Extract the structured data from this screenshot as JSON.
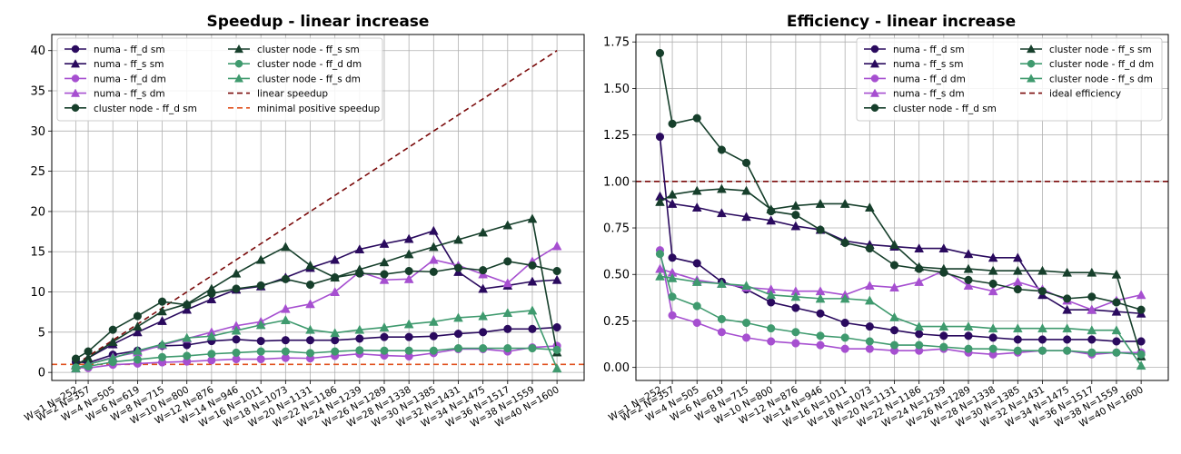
{
  "chart_data": [
    {
      "type": "line",
      "title": "Speedup - linear increase",
      "xlabel": "",
      "ylabel": "",
      "categories": [
        "W=1 N=252",
        "W=2 N=357",
        "W=4 N=505",
        "W=6 N=619",
        "W=8 N=715",
        "W=10 N=800",
        "W=12 N=876",
        "W=14 N=946",
        "W=16 N=1011",
        "W=18 N=1073",
        "W=20 N=1131",
        "W=22 N=1186",
        "W=24 N=1239",
        "W=26 N=1289",
        "W=28 N=1338",
        "W=30 N=1385",
        "W=32 N=1431",
        "W=34 N=1475",
        "W=36 N=1517",
        "W=38 N=1559",
        "W=40 N=1600"
      ],
      "x": [
        1,
        2,
        4,
        6,
        8,
        10,
        12,
        14,
        16,
        18,
        20,
        22,
        24,
        26,
        28,
        30,
        32,
        34,
        36,
        38,
        40
      ],
      "xlim": [
        -0.95,
        42.2
      ],
      "ylim": [
        -1.0,
        42.0
      ],
      "yticks": [
        0,
        5,
        10,
        15,
        20,
        25,
        30,
        35,
        40
      ],
      "grid": true,
      "legend_position": "top-left",
      "legend_columns": 2,
      "series": [
        {
          "name": "numa - ff_d sm",
          "color": "#2a0a5e",
          "marker": "circle",
          "values": [
            1.3,
            1.2,
            2.2,
            2.7,
            3.3,
            3.4,
            3.9,
            4.1,
            3.9,
            4.0,
            4.0,
            4.0,
            4.2,
            4.4,
            4.4,
            4.5,
            4.8,
            5.0,
            5.4,
            5.4,
            5.6
          ]
        },
        {
          "name": "numa - ff_s sm",
          "color": "#2a0a5e",
          "marker": "triangle",
          "values": [
            0.9,
            1.8,
            3.5,
            5.0,
            6.4,
            7.8,
            9.1,
            10.3,
            10.7,
            11.8,
            13.0,
            14.0,
            15.3,
            16.0,
            16.6,
            17.6,
            12.5,
            10.4,
            10.8,
            11.3,
            11.5
          ]
        },
        {
          "name": "numa - ff_d dm",
          "color": "#a64fd0",
          "marker": "circle",
          "values": [
            0.6,
            0.55,
            0.95,
            1.1,
            1.25,
            1.35,
            1.5,
            1.65,
            1.65,
            1.8,
            1.75,
            2.05,
            2.3,
            2.1,
            2.0,
            2.4,
            2.9,
            2.9,
            2.6,
            3.1,
            3.3
          ]
        },
        {
          "name": "numa - ff_s dm",
          "color": "#a64fd0",
          "marker": "triangle",
          "values": [
            0.5,
            1.0,
            1.9,
            2.5,
            3.4,
            4.2,
            5.0,
            5.8,
            6.3,
            7.9,
            8.5,
            10.0,
            12.5,
            11.5,
            11.6,
            14.0,
            13.3,
            12.2,
            11.1,
            13.8,
            15.7
          ]
        },
        {
          "name": "cluster node - ff_d sm",
          "color": "#163f2b",
          "marker": "circle",
          "values": [
            1.7,
            2.6,
            5.3,
            7.0,
            8.8,
            8.4,
            9.8,
            10.4,
            10.8,
            11.6,
            10.9,
            11.8,
            12.3,
            12.2,
            12.6,
            12.5,
            13.0,
            12.7,
            13.8,
            13.3,
            12.6
          ]
        },
        {
          "name": "cluster node - ff_s sm",
          "color": "#163f2b",
          "marker": "triangle",
          "values": [
            0.9,
            1.8,
            3.8,
            5.7,
            7.6,
            8.5,
            10.4,
            12.3,
            14.0,
            15.6,
            13.3,
            11.8,
            12.8,
            13.7,
            14.7,
            15.6,
            16.5,
            17.4,
            18.3,
            19.1,
            2.5
          ]
        },
        {
          "name": "cluster node - ff_d dm",
          "color": "#3f9a6e",
          "marker": "circle",
          "values": [
            0.6,
            0.75,
            1.3,
            1.6,
            1.9,
            2.05,
            2.3,
            2.45,
            2.6,
            2.6,
            2.4,
            2.6,
            2.75,
            2.7,
            2.7,
            2.7,
            3.0,
            3.0,
            3.0,
            3.0,
            2.8
          ]
        },
        {
          "name": "cluster node - ff_s dm",
          "color": "#3f9a6e",
          "marker": "triangle",
          "values": [
            0.5,
            1.0,
            1.8,
            2.7,
            3.5,
            4.3,
            4.5,
            5.2,
            5.9,
            6.5,
            5.3,
            4.9,
            5.3,
            5.6,
            6.0,
            6.3,
            6.8,
            7.0,
            7.4,
            7.7,
            0.5
          ]
        }
      ],
      "reference_lines": [
        {
          "name": "linear speedup",
          "color": "#7a0a0a",
          "style": "dashed",
          "from": [
            1,
            1
          ],
          "to": [
            40,
            40
          ]
        },
        {
          "name": "minimal positive speedup",
          "color": "#e0501e",
          "style": "dashed",
          "y": 1
        }
      ]
    },
    {
      "type": "line",
      "title": "Efficiency - linear increase",
      "xlabel": "",
      "ylabel": "",
      "categories": [
        "W=1 N=252",
        "W=2 N=357",
        "W=4 N=505",
        "W=6 N=619",
        "W=8 N=715",
        "W=10 N=800",
        "W=12 N=876",
        "W=14 N=946",
        "W=16 N=1011",
        "W=18 N=1073",
        "W=20 N=1131",
        "W=22 N=1186",
        "W=24 N=1239",
        "W=26 N=1289",
        "W=28 N=1338",
        "W=30 N=1385",
        "W=32 N=1431",
        "W=34 N=1475",
        "W=36 N=1517",
        "W=38 N=1559",
        "W=40 N=1600"
      ],
      "x": [
        1,
        2,
        4,
        6,
        8,
        10,
        12,
        14,
        16,
        18,
        20,
        22,
        24,
        26,
        28,
        30,
        32,
        34,
        36,
        38,
        40
      ],
      "xlim": [
        -0.95,
        42.2
      ],
      "ylim": [
        -0.07,
        1.79
      ],
      "yticks": [
        0.0,
        0.25,
        0.5,
        0.75,
        1.0,
        1.25,
        1.5,
        1.75
      ],
      "ytick_labels": [
        "0.00",
        "0.25",
        "0.50",
        "0.75",
        "1.00",
        "1.25",
        "1.50",
        "1.75"
      ],
      "grid": true,
      "legend_position": "top-right",
      "legend_columns": 2,
      "series": [
        {
          "name": "numa - ff_d sm",
          "color": "#2a0a5e",
          "marker": "circle",
          "values": [
            1.24,
            0.59,
            0.56,
            0.46,
            0.42,
            0.35,
            0.32,
            0.29,
            0.24,
            0.22,
            0.2,
            0.18,
            0.17,
            0.17,
            0.16,
            0.15,
            0.15,
            0.15,
            0.15,
            0.14,
            0.14
          ]
        },
        {
          "name": "numa - ff_s sm",
          "color": "#2a0a5e",
          "marker": "triangle",
          "values": [
            0.92,
            0.88,
            0.86,
            0.83,
            0.81,
            0.79,
            0.76,
            0.74,
            0.68,
            0.66,
            0.65,
            0.64,
            0.64,
            0.61,
            0.59,
            0.59,
            0.39,
            0.31,
            0.31,
            0.3,
            0.29
          ]
        },
        {
          "name": "numa - ff_d dm",
          "color": "#a64fd0",
          "marker": "circle",
          "values": [
            0.63,
            0.28,
            0.24,
            0.19,
            0.16,
            0.14,
            0.13,
            0.12,
            0.1,
            0.1,
            0.09,
            0.09,
            0.1,
            0.08,
            0.07,
            0.08,
            0.09,
            0.09,
            0.07,
            0.08,
            0.08
          ]
        },
        {
          "name": "numa - ff_s dm",
          "color": "#a64fd0",
          "marker": "triangle",
          "values": [
            0.53,
            0.51,
            0.47,
            0.45,
            0.43,
            0.42,
            0.41,
            0.41,
            0.39,
            0.44,
            0.43,
            0.46,
            0.52,
            0.44,
            0.41,
            0.46,
            0.42,
            0.36,
            0.31,
            0.36,
            0.39
          ]
        },
        {
          "name": "cluster node - ff_d sm",
          "color": "#163f2b",
          "marker": "circle",
          "values": [
            1.69,
            1.31,
            1.34,
            1.17,
            1.1,
            0.84,
            0.82,
            0.74,
            0.67,
            0.64,
            0.55,
            0.53,
            0.51,
            0.47,
            0.45,
            0.42,
            0.41,
            0.37,
            0.38,
            0.35,
            0.31
          ]
        },
        {
          "name": "cluster node - ff_s sm",
          "color": "#163f2b",
          "marker": "triangle",
          "values": [
            0.89,
            0.93,
            0.95,
            0.96,
            0.95,
            0.85,
            0.87,
            0.88,
            0.88,
            0.86,
            0.66,
            0.54,
            0.53,
            0.53,
            0.52,
            0.52,
            0.52,
            0.51,
            0.51,
            0.5,
            0.06
          ]
        },
        {
          "name": "cluster node - ff_d dm",
          "color": "#3f9a6e",
          "marker": "circle",
          "values": [
            0.61,
            0.38,
            0.33,
            0.26,
            0.24,
            0.21,
            0.19,
            0.17,
            0.16,
            0.14,
            0.12,
            0.12,
            0.11,
            0.1,
            0.1,
            0.09,
            0.09,
            0.09,
            0.08,
            0.08,
            0.07
          ]
        },
        {
          "name": "cluster node - ff_s dm",
          "color": "#3f9a6e",
          "marker": "triangle",
          "values": [
            0.49,
            0.48,
            0.46,
            0.45,
            0.44,
            0.39,
            0.38,
            0.37,
            0.37,
            0.36,
            0.27,
            0.22,
            0.22,
            0.22,
            0.21,
            0.21,
            0.21,
            0.21,
            0.2,
            0.2,
            0.01
          ]
        }
      ],
      "reference_lines": [
        {
          "name": "ideal efficiency",
          "color": "#7a0a0a",
          "style": "dashed",
          "y": 1
        }
      ]
    }
  ]
}
